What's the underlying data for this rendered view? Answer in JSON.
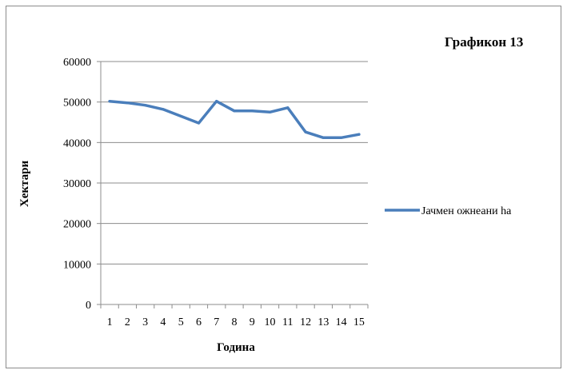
{
  "chart_data": {
    "type": "line",
    "title": "Графикон 13",
    "xlabel": "Година",
    "ylabel": "Хектари",
    "x": [
      1,
      2,
      3,
      4,
      5,
      6,
      7,
      8,
      9,
      10,
      11,
      12,
      13,
      14,
      15
    ],
    "x_tick_labels": [
      "1",
      "2",
      "3",
      "4",
      "5",
      "6",
      "7",
      "8",
      "9",
      "10",
      "11",
      "12",
      "13",
      "14",
      "15"
    ],
    "y_ticks": [
      0,
      10000,
      20000,
      30000,
      40000,
      50000,
      60000
    ],
    "y_tick_labels": [
      "0",
      "10000",
      "20000",
      "30000",
      "40000",
      "50000",
      "60000"
    ],
    "ylim": [
      0,
      60000
    ],
    "grid": true,
    "legend_position": "right",
    "series": [
      {
        "name": "Јачмен ожнеани hа",
        "color": "#4a7ebb",
        "values": [
          50200,
          49800,
          49200,
          48200,
          46500,
          44800,
          50200,
          47800,
          47800,
          47500,
          48600,
          42600,
          41200,
          41200,
          42000
        ]
      }
    ]
  }
}
